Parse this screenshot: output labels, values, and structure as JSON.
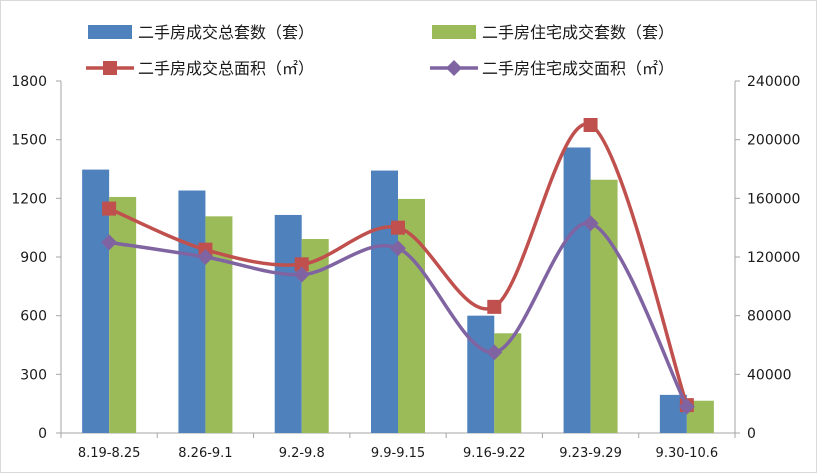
{
  "chart_data": {
    "type": "bar",
    "categories": [
      "8.19-8.25",
      "8.26-9.1",
      "9.2-9.8",
      "9.9-9.15",
      "9.16-9.22",
      "9.23-9.29",
      "9.30-10.6"
    ],
    "left_axis": {
      "ylim": [
        0,
        1800
      ],
      "ticks": [
        "0",
        "300",
        "600",
        "900",
        "1200",
        "1500",
        "1800"
      ]
    },
    "right_axis": {
      "ylim": [
        0,
        240000
      ],
      "ticks": [
        "0",
        "40000",
        "80000",
        "120000",
        "160000",
        "200000",
        "240000"
      ]
    },
    "series": [
      {
        "name": "二手房成交总套数（套）",
        "kind": "bar",
        "axis": "left",
        "color": "#4f81bd",
        "values": [
          1347,
          1240,
          1115,
          1342,
          600,
          1460,
          195
        ]
      },
      {
        "name": "二手房住宅成交套数（套）",
        "kind": "bar",
        "axis": "left",
        "color": "#9bbb59",
        "values": [
          1207,
          1108,
          992,
          1197,
          510,
          1295,
          165
        ]
      },
      {
        "name": "二手房成交总面积（㎡）",
        "kind": "line",
        "axis": "right",
        "color": "#c0504d",
        "marker": "square",
        "values": [
          153000,
          125000,
          115000,
          140000,
          86000,
          210000,
          19000
        ]
      },
      {
        "name": "二手房住宅成交面积（㎡）",
        "kind": "line",
        "axis": "right",
        "color": "#8064a2",
        "marker": "diamond",
        "values": [
          130000,
          120000,
          108000,
          126000,
          55000,
          143000,
          18000
        ]
      }
    ],
    "title": "",
    "xlabel": "",
    "ylabel": "",
    "grid": false,
    "legend_placement": "top"
  }
}
